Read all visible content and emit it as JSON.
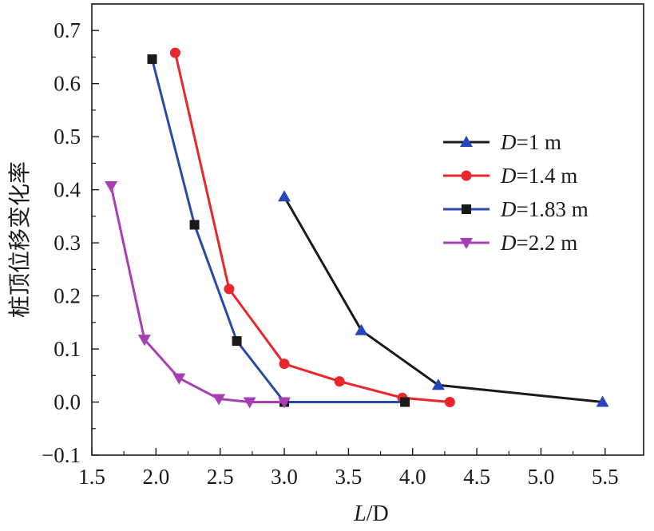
{
  "chart_data": {
    "type": "line",
    "xlabel_italic": "L",
    "xlabel_rest": "/D",
    "ylabel": "桩顶位移变化率",
    "xlim": [
      1.5,
      5.8
    ],
    "ylim": [
      -0.1,
      0.75
    ],
    "xticks": [
      "1.5",
      "2.0",
      "2.5",
      "3.0",
      "3.5",
      "4.0",
      "4.5",
      "5.0",
      "5.5"
    ],
    "yticks": [
      "-0.1",
      "0.0",
      "0.1",
      "0.2",
      "0.3",
      "0.4",
      "0.5",
      "0.6",
      "0.7"
    ],
    "legend_position": "right",
    "grid": false,
    "series": [
      {
        "name_italic": "D",
        "name_rest": "=1 m",
        "color": "#1a1a1a",
        "marker": "triangle-up",
        "marker_color": "#2747b8",
        "x": [
          3.0,
          3.6,
          4.2,
          5.48
        ],
        "y": [
          0.387,
          0.135,
          0.032,
          0.0
        ]
      },
      {
        "name_italic": "D",
        "name_rest": "=1.4 m",
        "color": "#e8262b",
        "marker": "circle",
        "marker_color": "#e8262b",
        "x": [
          2.15,
          2.57,
          3.0,
          3.43,
          3.92,
          4.29
        ],
        "y": [
          0.658,
          0.213,
          0.072,
          0.039,
          0.008,
          0.0
        ]
      },
      {
        "name_italic": "D",
        "name_rest": "=1.83 m",
        "color": "#2a4aa8",
        "marker": "square",
        "marker_color": "#1a1a1a",
        "x": [
          1.97,
          2.3,
          2.63,
          3.0,
          3.94
        ],
        "y": [
          0.646,
          0.334,
          0.115,
          0.0,
          0.0
        ]
      },
      {
        "name_italic": "D",
        "name_rest": "=2.2 m",
        "color": "#a93db4",
        "marker": "triangle-down",
        "marker_color": "#a93db4",
        "x": [
          1.65,
          1.91,
          2.18,
          2.49,
          2.73,
          3.0
        ],
        "y": [
          0.407,
          0.118,
          0.045,
          0.006,
          0.0,
          0.0
        ]
      }
    ]
  }
}
